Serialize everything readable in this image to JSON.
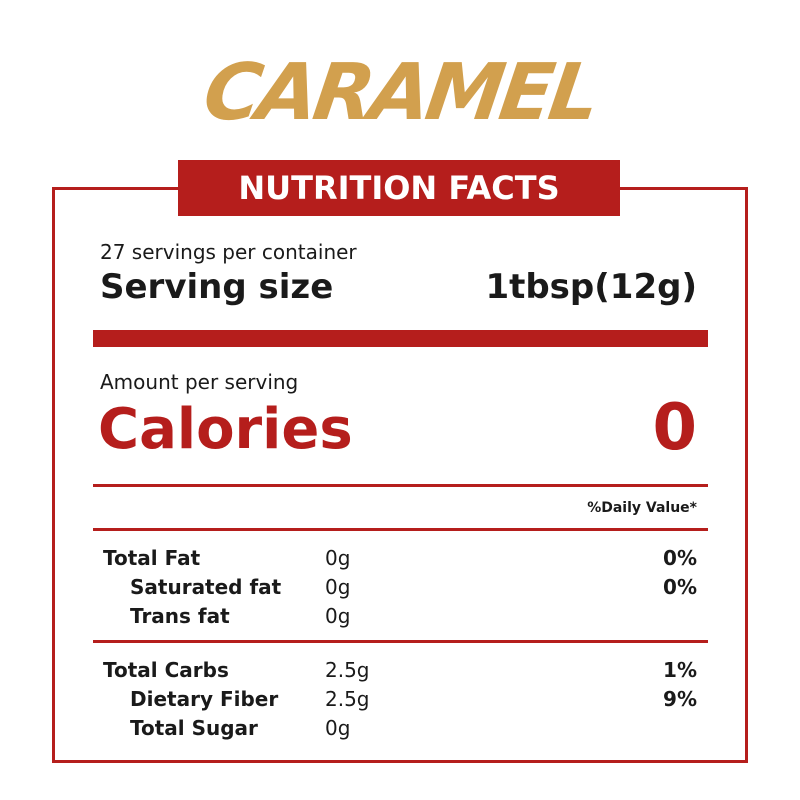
{
  "brand_title": "CARAMEL",
  "header": {
    "title": "NUTRITION FACTS"
  },
  "servings": "27 servings per container",
  "serving_size": {
    "label": "Serving size",
    "value": "1tbsp(12g)"
  },
  "amount_per_serving": "Amount per serving",
  "calories": {
    "label": "Calories",
    "value": "0"
  },
  "daily_value_header": "%Daily Value*",
  "sections": [
    {
      "name": "Total Fat",
      "amount": "0g",
      "daily_value": "0%",
      "sub_rows": [
        {
          "name": "Saturated fat",
          "amount": "0g",
          "daily_value": "0%"
        },
        {
          "name": "Trans fat",
          "amount": "0g",
          "daily_value": null
        }
      ]
    },
    {
      "name": "Total Carbs",
      "amount": "2.5g",
      "daily_value": "1%",
      "sub_rows": [
        {
          "name": "Dietary Fiber",
          "amount": "2.5g",
          "daily_value": "9%"
        },
        {
          "name": "Total Sugar",
          "amount": "0g",
          "daily_value": null
        }
      ]
    }
  ]
}
